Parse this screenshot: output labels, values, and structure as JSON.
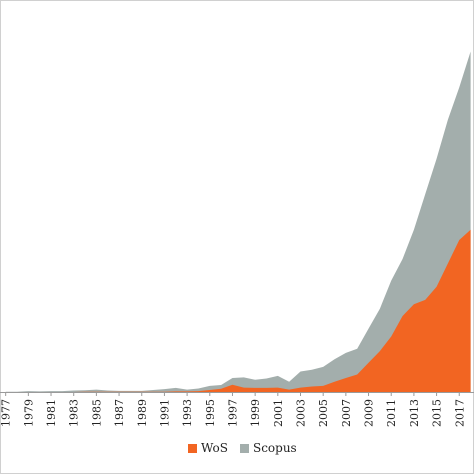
{
  "chart_data": {
    "type": "area",
    "stacked": false,
    "x": [
      1977,
      1978,
      1979,
      1980,
      1981,
      1982,
      1983,
      1984,
      1985,
      1986,
      1987,
      1988,
      1989,
      1990,
      1991,
      1992,
      1993,
      1994,
      1995,
      1996,
      1997,
      1998,
      1999,
      2000,
      2001,
      2002,
      2003,
      2004,
      2005,
      2006,
      2007,
      2008,
      2009,
      2010,
      2011,
      2012,
      2013,
      2014,
      2015,
      2016,
      2017,
      2018
    ],
    "tick_labels": [
      "1977",
      "1979",
      "1981",
      "1983",
      "1985",
      "1987",
      "1989",
      "1991",
      "1993",
      "1995",
      "1997",
      "1999",
      "2001",
      "2003",
      "2005",
      "2007",
      "2009",
      "2011",
      "2013",
      "2015",
      "2017"
    ],
    "series": [
      {
        "name": "Scopus",
        "color": "#a3aeac",
        "values": [
          1,
          1,
          3,
          2,
          3,
          3,
          5,
          6,
          8,
          5,
          4,
          4,
          4,
          7,
          10,
          14,
          8,
          12,
          21,
          24,
          48,
          50,
          42,
          46,
          55,
          35,
          70,
          76,
          86,
          112,
          134,
          148,
          217,
          285,
          381,
          455,
          555,
          677,
          798,
          932,
          1042,
          1165
        ]
      },
      {
        "name": "WoS",
        "color": "#f26522",
        "values": [
          0,
          0,
          0,
          0,
          0,
          0,
          0,
          1,
          1,
          1,
          1,
          1,
          1,
          1,
          1,
          2,
          2,
          3,
          7,
          11,
          25,
          15,
          14,
          14,
          15,
          8,
          15,
          19,
          21,
          35,
          48,
          60,
          100,
          140,
          190,
          260,
          300,
          315,
          360,
          440,
          520,
          555
        ]
      }
    ],
    "title": "",
    "xlabel": "",
    "ylabel": "",
    "grid": false,
    "legend_position": "bottom-center"
  },
  "legend": {
    "wos": "WoS",
    "scopus": "Scopus"
  }
}
